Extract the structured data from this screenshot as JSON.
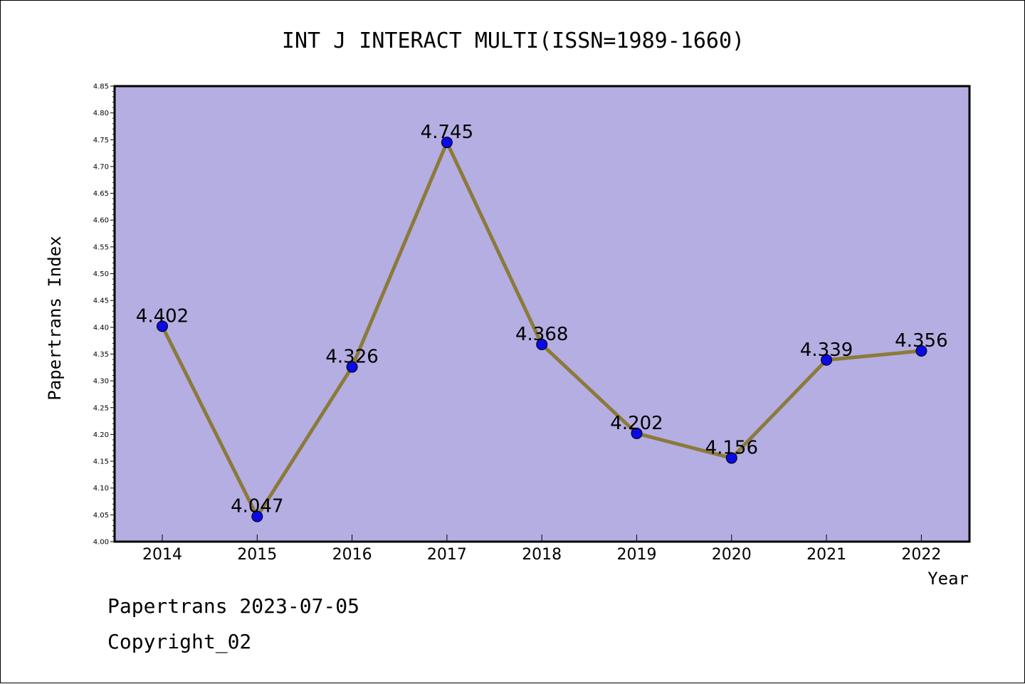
{
  "chart_data": {
    "type": "line",
    "title": "INT J INTERACT MULTI(ISSN=1989-1660)",
    "xlabel": "Year",
    "ylabel": "Papertrans Index",
    "categories": [
      "2014",
      "2015",
      "2016",
      "2017",
      "2018",
      "2019",
      "2020",
      "2021",
      "2022"
    ],
    "values": [
      4.402,
      4.047,
      4.326,
      4.745,
      4.368,
      4.202,
      4.156,
      4.339,
      4.356
    ],
    "value_labels": [
      "4.402",
      "4.047",
      "4.326",
      "4.745",
      "4.368",
      "4.202",
      "4.156",
      "4.339",
      "4.356"
    ],
    "ylim": [
      4.0,
      4.85
    ],
    "yticks": [
      "4.00",
      "4.05",
      "4.10",
      "4.15",
      "4.20",
      "4.25",
      "4.30",
      "4.35",
      "4.40",
      "4.45",
      "4.50",
      "4.55",
      "4.60",
      "4.65",
      "4.70",
      "4.75",
      "4.80",
      "4.85"
    ],
    "grid": false,
    "colors": {
      "plot_background": "#b4aee2",
      "line": "#8b7a3a",
      "marker": "#0a0ae6"
    }
  },
  "footer": {
    "line1": "Papertrans 2023-07-05",
    "line2": "Copyright_02"
  }
}
